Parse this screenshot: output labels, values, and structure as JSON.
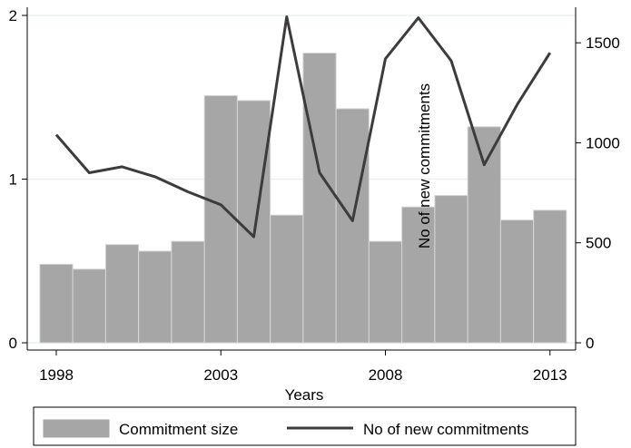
{
  "chart_data": {
    "type": "bar+line",
    "x": [
      1998,
      1999,
      2000,
      2001,
      2002,
      2003,
      2004,
      2005,
      2006,
      2007,
      2008,
      2009,
      2010,
      2011,
      2012,
      2013
    ],
    "xlabel": "Years",
    "x_tick_labels": [
      "1998",
      "2003",
      "2008",
      "2013"
    ],
    "x_ticks": [
      1998,
      2003,
      2008,
      2013
    ],
    "series": [
      {
        "name": "Commitment size",
        "type": "bar",
        "axis": "left",
        "color": "#a6a6a6",
        "values": [
          0.48,
          0.45,
          0.6,
          0.56,
          0.62,
          1.51,
          1.48,
          0.78,
          1.77,
          1.43,
          0.62,
          0.83,
          0.9,
          1.32,
          0.75,
          0.81
        ]
      },
      {
        "name": "No of new commitments",
        "type": "line",
        "axis": "right",
        "color": "#3c3c3c",
        "values": [
          1040,
          850,
          880,
          830,
          755,
          690,
          530,
          1630,
          850,
          610,
          1420,
          1625,
          1410,
          890,
          1190,
          1450
        ]
      }
    ],
    "y_left": {
      "ylim": [
        0,
        2
      ],
      "ticks": [
        0,
        1,
        2
      ],
      "tick_labels": [
        "0",
        "1",
        "2"
      ]
    },
    "y_right": {
      "ylim": [
        0,
        1655
      ],
      "ticks": [
        0,
        500,
        1000,
        1500
      ],
      "tick_labels": [
        "0",
        "500",
        "1000",
        "1500"
      ],
      "label": "No of new commitments"
    },
    "grid": true,
    "legend": {
      "placement": "bottom",
      "entries": [
        "Commitment size",
        "No of new commitments"
      ]
    }
  }
}
